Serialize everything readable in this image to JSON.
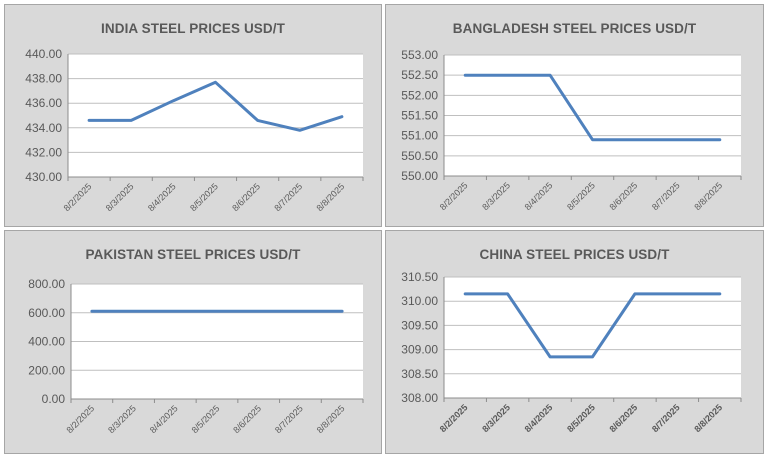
{
  "chart_data": [
    {
      "type": "line",
      "title": "INDIA STEEL PRICES USD/T",
      "categories": [
        "8/2/2025",
        "8/3/2025",
        "8/4/2025",
        "8/5/2025",
        "8/6/2025",
        "8/7/2025",
        "8/8/2025"
      ],
      "yticks": [
        "440.00",
        "438.00",
        "436.00",
        "434.00",
        "432.00",
        "430.00"
      ],
      "ylim": [
        430,
        440
      ],
      "series": [
        {
          "values": [
            434.6,
            434.6,
            436.2,
            437.7,
            434.6,
            433.8,
            434.9
          ]
        }
      ],
      "grid": true,
      "color": "#4f81bd"
    },
    {
      "type": "line",
      "title": "BANGLADESH STEEL PRICES USD/T",
      "categories": [
        "8/2/2025",
        "8/3/2025",
        "8/4/2025",
        "8/5/2025",
        "8/6/2025",
        "8/7/2025",
        "8/8/2025"
      ],
      "yticks": [
        "553.00",
        "552.50",
        "552.00",
        "551.50",
        "551.00",
        "550.50",
        "550.00"
      ],
      "ylim": [
        550,
        553
      ],
      "series": [
        {
          "values": [
            552.5,
            552.5,
            552.5,
            550.9,
            550.9,
            550.9,
            550.9
          ]
        }
      ],
      "grid": true,
      "color": "#4f81bd"
    },
    {
      "type": "line",
      "title": "PAKISTAN STEEL PRICES USD/T",
      "categories": [
        "8/2/2025",
        "8/3/2025",
        "8/4/2025",
        "8/5/2025",
        "8/6/2025",
        "8/7/2025",
        "8/8/2025"
      ],
      "yticks": [
        "800.00",
        "600.00",
        "400.00",
        "200.00",
        "0.00"
      ],
      "ylim": [
        0,
        800
      ],
      "series": [
        {
          "values": [
            610,
            610,
            610,
            610,
            610,
            610,
            610
          ]
        }
      ],
      "grid": true,
      "color": "#4f81bd"
    },
    {
      "type": "line",
      "title": "CHINA STEEL PRICES USD/T",
      "categories": [
        "8/2/2025",
        "8/3/2025",
        "8/4/2025",
        "8/5/2025",
        "8/6/2025",
        "8/7/2025",
        "8/8/2025"
      ],
      "yticks": [
        "310.50",
        "310.00",
        "309.50",
        "309.00",
        "308.50",
        "308.00"
      ],
      "ylim": [
        308,
        310.5
      ],
      "series": [
        {
          "values": [
            310.15,
            310.15,
            308.85,
            308.85,
            310.15,
            310.15,
            310.15
          ]
        }
      ],
      "grid": true,
      "color": "#4f81bd"
    }
  ]
}
